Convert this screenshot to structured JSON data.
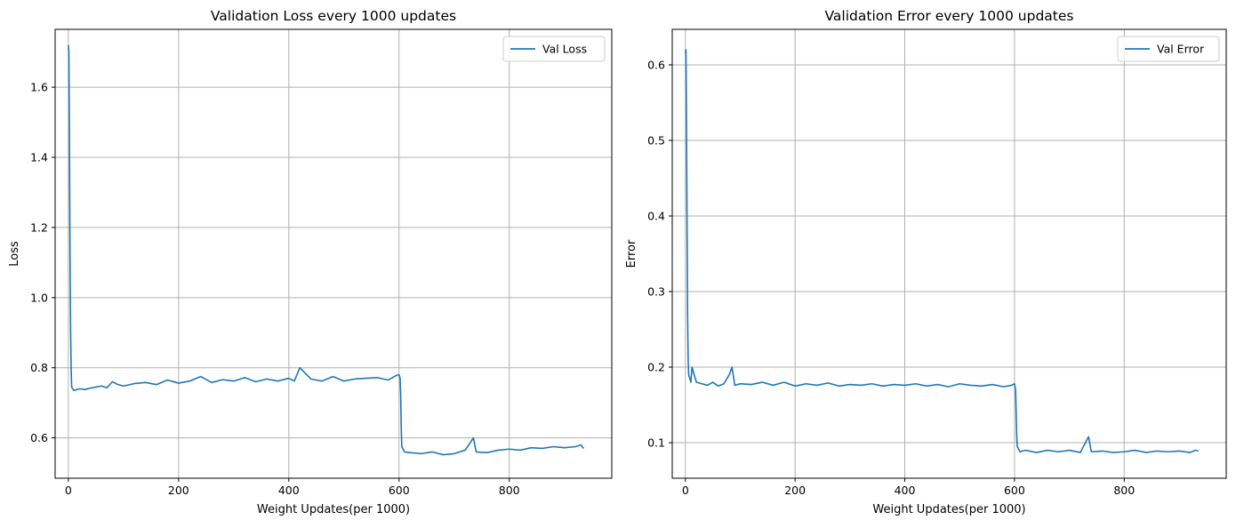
{
  "chart_data": [
    {
      "type": "line",
      "title": "Validation Loss every 1000 updates",
      "xlabel": "Weight Updates(per 1000)",
      "ylabel": "Loss",
      "xlim": [
        -24,
        986
      ],
      "ylim": [
        0.485,
        1.765
      ],
      "xticks": [
        0,
        200,
        400,
        600,
        800
      ],
      "yticks": [
        0.6,
        0.8,
        1.0,
        1.2,
        1.4,
        1.6
      ],
      "ytick_labels": [
        "0.6",
        "0.8",
        "1.0",
        "1.2",
        "1.4",
        "1.6"
      ],
      "grid": true,
      "legend_position": "upper right",
      "series": [
        {
          "name": "Val Loss",
          "color": "#1f77b4",
          "x": [
            0,
            1,
            2,
            3,
            4,
            5,
            6,
            10,
            20,
            30,
            40,
            50,
            60,
            70,
            80,
            90,
            100,
            120,
            140,
            160,
            180,
            200,
            220,
            240,
            260,
            280,
            300,
            320,
            340,
            360,
            380,
            400,
            410,
            420,
            440,
            460,
            480,
            500,
            520,
            540,
            560,
            580,
            595,
            600,
            602,
            603,
            604,
            605,
            610,
            620,
            640,
            660,
            680,
            700,
            720,
            735,
            740,
            760,
            780,
            800,
            820,
            840,
            860,
            880,
            900,
            920,
            930,
            935
          ],
          "y": [
            1.72,
            1.7,
            1.45,
            1.12,
            0.92,
            0.8,
            0.745,
            0.735,
            0.74,
            0.738,
            0.742,
            0.745,
            0.748,
            0.743,
            0.76,
            0.752,
            0.748,
            0.755,
            0.758,
            0.752,
            0.765,
            0.756,
            0.762,
            0.775,
            0.758,
            0.766,
            0.762,
            0.772,
            0.76,
            0.768,
            0.762,
            0.77,
            0.762,
            0.8,
            0.768,
            0.762,
            0.775,
            0.762,
            0.768,
            0.77,
            0.772,
            0.765,
            0.778,
            0.78,
            0.77,
            0.72,
            0.63,
            0.575,
            0.56,
            0.558,
            0.555,
            0.56,
            0.552,
            0.555,
            0.565,
            0.6,
            0.56,
            0.558,
            0.565,
            0.568,
            0.565,
            0.572,
            0.57,
            0.575,
            0.572,
            0.575,
            0.58,
            0.57
          ]
        }
      ]
    },
    {
      "type": "line",
      "title": "Validation Error every 1000 updates",
      "xlabel": "Weight Updates(per 1000)",
      "ylabel": "Error",
      "xlim": [
        -24,
        986
      ],
      "ylim": [
        0.053,
        0.647
      ],
      "xticks": [
        0,
        200,
        400,
        600,
        800
      ],
      "yticks": [
        0.1,
        0.2,
        0.3,
        0.4,
        0.5,
        0.6
      ],
      "ytick_labels": [
        "0.1",
        "0.2",
        "0.3",
        "0.4",
        "0.5",
        "0.6"
      ],
      "grid": true,
      "legend_position": "upper right",
      "series": [
        {
          "name": "Val Error",
          "color": "#1f77b4",
          "x": [
            0,
            1,
            2,
            3,
            4,
            5,
            6,
            10,
            12,
            20,
            30,
            40,
            50,
            60,
            70,
            80,
            85,
            90,
            100,
            120,
            140,
            160,
            180,
            200,
            220,
            240,
            260,
            280,
            300,
            320,
            340,
            360,
            380,
            400,
            420,
            440,
            460,
            480,
            500,
            520,
            540,
            560,
            580,
            595,
            600,
            602,
            603,
            604,
            605,
            610,
            620,
            640,
            660,
            680,
            700,
            720,
            735,
            740,
            760,
            780,
            800,
            820,
            840,
            860,
            880,
            900,
            920,
            930,
            935
          ],
          "y": [
            0.615,
            0.62,
            0.52,
            0.39,
            0.27,
            0.21,
            0.19,
            0.18,
            0.2,
            0.18,
            0.178,
            0.176,
            0.18,
            0.175,
            0.178,
            0.19,
            0.2,
            0.176,
            0.178,
            0.177,
            0.18,
            0.176,
            0.18,
            0.175,
            0.178,
            0.176,
            0.179,
            0.175,
            0.177,
            0.176,
            0.178,
            0.175,
            0.177,
            0.176,
            0.178,
            0.175,
            0.177,
            0.174,
            0.178,
            0.176,
            0.175,
            0.177,
            0.174,
            0.176,
            0.178,
            0.17,
            0.14,
            0.11,
            0.095,
            0.088,
            0.09,
            0.087,
            0.09,
            0.088,
            0.09,
            0.087,
            0.108,
            0.088,
            0.089,
            0.087,
            0.088,
            0.09,
            0.087,
            0.089,
            0.088,
            0.089,
            0.087,
            0.09,
            0.089
          ]
        }
      ]
    }
  ]
}
